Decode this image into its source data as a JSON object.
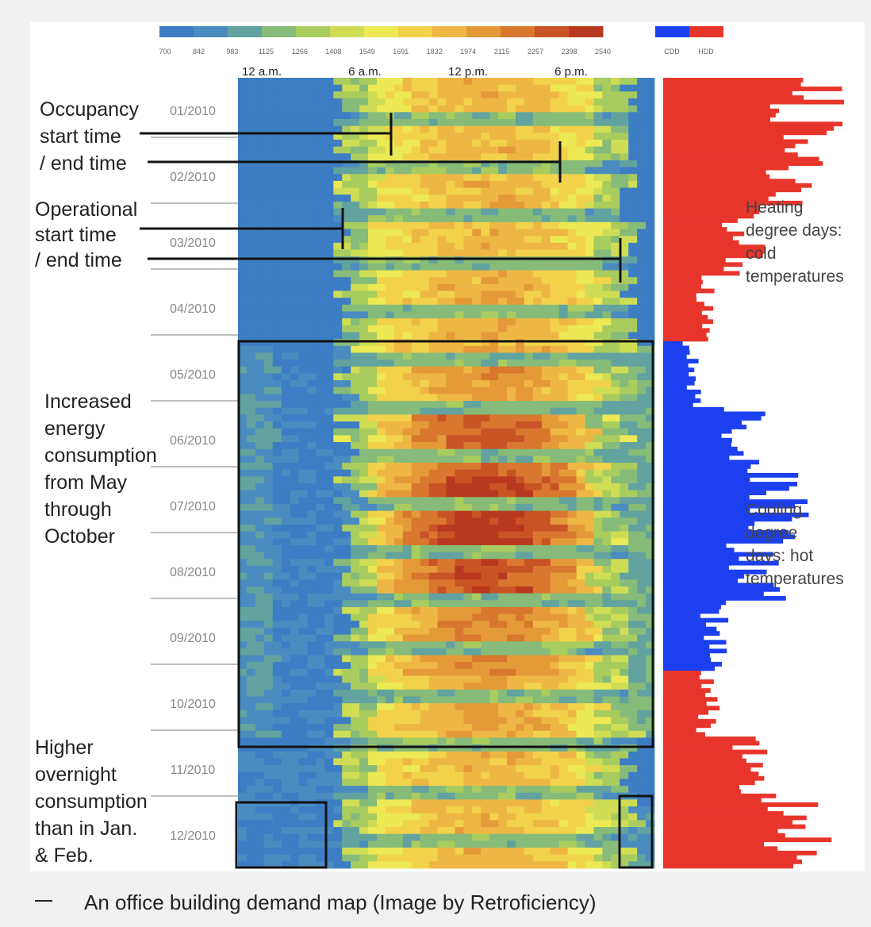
{
  "caption": "An office building demand map (Image by Retroficiency)",
  "chart_data": [
    {
      "type": "heatmap",
      "title": "",
      "color_scale": {
        "ticks": [
          "700",
          "842",
          "983",
          "1125",
          "1266",
          "1408",
          "1549",
          "1691",
          "1832",
          "1974",
          "2115",
          "2257",
          "2398",
          "2540"
        ],
        "colors": [
          "#3d7dc4",
          "#4a8cc0",
          "#62a3a0",
          "#86bb79",
          "#a9cc5e",
          "#cfdd55",
          "#ece954",
          "#f2d24b",
          "#eeb743",
          "#e59a39",
          "#d9772f",
          "#c85426",
          "#b8391f"
        ]
      },
      "x_axis": {
        "ticks": [
          "12 a.m.",
          "6 a.m.",
          "12 p.m.",
          "6 p.m."
        ]
      },
      "y_axis": {
        "ticks": [
          "01/2010",
          "02/2010",
          "03/2010",
          "04/2010",
          "05/2010",
          "06/2010",
          "07/2010",
          "08/2010",
          "09/2010",
          "10/2010",
          "11/2010",
          "12/2010"
        ]
      },
      "annotations": [
        {
          "text": [
            "Occupancy",
            "start time",
            "/ end time"
          ]
        },
        {
          "text": [
            "Operational",
            "start time",
            "/ end time"
          ]
        },
        {
          "text": [
            "Increased",
            "energy",
            "consumption",
            "from May",
            "through",
            "October"
          ]
        },
        {
          "text": [
            "Higher",
            "overnight",
            "consumption",
            "than in Jan.",
            "& Feb."
          ]
        }
      ]
    },
    {
      "type": "bar",
      "orientation": "horizontal",
      "legend": {
        "placement": "top",
        "entries": [
          {
            "name": "CDD",
            "color": "#1c3ff0"
          },
          {
            "name": "HDD",
            "color": "#e8352b"
          }
        ]
      },
      "monthly_profile": {
        "months": [
          "01",
          "02",
          "03",
          "04",
          "05",
          "06",
          "07",
          "08",
          "09",
          "10",
          "11",
          "12"
        ],
        "hdd_relative": [
          0.95,
          0.85,
          0.55,
          0.3,
          0.1,
          0.0,
          0.0,
          0.0,
          0.05,
          0.3,
          0.6,
          0.9
        ],
        "cdd_relative": [
          0.0,
          0.0,
          0.0,
          0.05,
          0.2,
          0.55,
          0.8,
          0.65,
          0.35,
          0.1,
          0.0,
          0.0
        ]
      },
      "annotations": [
        {
          "text": [
            "Heating",
            "degree days:",
            "cold",
            "temperatures"
          ]
        },
        {
          "text": [
            "Cooling",
            "degree",
            "days: hot",
            "temperatures"
          ]
        }
      ]
    }
  ]
}
